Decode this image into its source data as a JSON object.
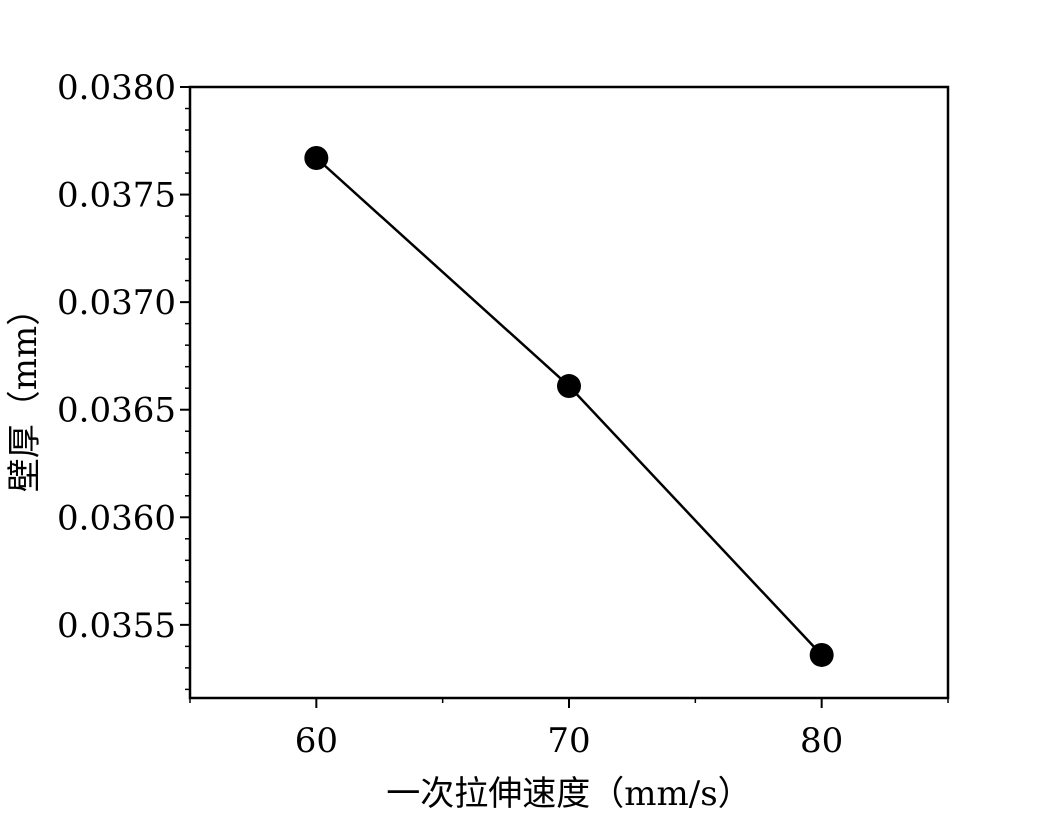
{
  "chart_data": {
    "type": "line",
    "title": "",
    "xlabel": "一次拉伸速度（mm/s）",
    "ylabel": "壁厚（mm）",
    "xlim": [
      55,
      85
    ],
    "ylim": [
      0.03516,
      0.038
    ],
    "xticks": [
      60,
      70,
      80
    ],
    "xtick_labels": [
      "60",
      "70",
      "80"
    ],
    "yticks": [
      0.0355,
      0.036,
      0.0365,
      0.037,
      0.0375,
      0.038
    ],
    "ytick_labels": [
      "0.0355",
      "0.0360",
      "0.0365",
      "0.0370",
      "0.0375",
      "0.0380"
    ],
    "grid": false,
    "series": [
      {
        "x": [
          60,
          70,
          80
        ],
        "y": [
          0.03767,
          0.03661,
          0.03536
        ],
        "color": "#000000",
        "marker": "circle"
      }
    ]
  }
}
